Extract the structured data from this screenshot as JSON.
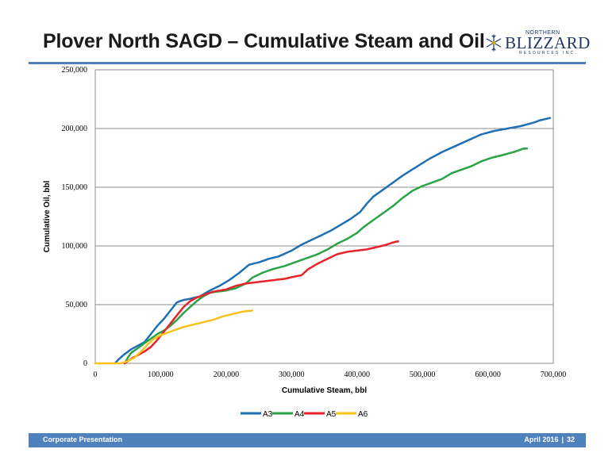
{
  "slide": {
    "title": "Plover North SAGD – Cumulative Steam and Oil",
    "logo": {
      "top": "NORTHERN",
      "name": "BLIZZARD",
      "sub": "RESOURCES INC."
    },
    "footer": {
      "left": "Corporate Presentation",
      "date": "April 2016",
      "separator": "|",
      "page": "32"
    },
    "colors": {
      "accent": "#4f81bd"
    }
  },
  "chart_data": {
    "type": "line",
    "xlabel": "Cumulative Steam, bbl",
    "ylabel": "Cumulative Oil, bbl",
    "xlim": [
      0,
      700000
    ],
    "ylim": [
      0,
      250000
    ],
    "xticks": [
      0,
      100000,
      200000,
      300000,
      400000,
      500000,
      600000,
      700000
    ],
    "xtick_labels": [
      "0",
      "100,000",
      "200,000",
      "300,000",
      "400,000",
      "500,000",
      "600,000",
      "700,000"
    ],
    "yticks": [
      0,
      50000,
      100000,
      150000,
      200000,
      250000
    ],
    "ytick_labels": [
      "0",
      "50,000",
      "100,000",
      "150,000",
      "200,000",
      "250,000"
    ],
    "grid": "horizontal",
    "legend": "bottom",
    "series": [
      {
        "name": "A3",
        "color": "#1f6fb4",
        "points": [
          [
            30000,
            0
          ],
          [
            35000,
            3000
          ],
          [
            45000,
            8000
          ],
          [
            55000,
            12000
          ],
          [
            65000,
            15000
          ],
          [
            75000,
            18000
          ],
          [
            85000,
            25000
          ],
          [
            95000,
            32000
          ],
          [
            105000,
            38000
          ],
          [
            115000,
            45000
          ],
          [
            125000,
            52000
          ],
          [
            135000,
            54000
          ],
          [
            145000,
            55000
          ],
          [
            160000,
            57000
          ],
          [
            175000,
            62000
          ],
          [
            190000,
            66000
          ],
          [
            205000,
            71000
          ],
          [
            220000,
            77000
          ],
          [
            235000,
            84000
          ],
          [
            250000,
            86000
          ],
          [
            265000,
            89000
          ],
          [
            280000,
            91000
          ],
          [
            300000,
            96000
          ],
          [
            315000,
            101000
          ],
          [
            330000,
            105000
          ],
          [
            345000,
            109000
          ],
          [
            360000,
            113000
          ],
          [
            375000,
            118000
          ],
          [
            390000,
            123000
          ],
          [
            405000,
            129000
          ],
          [
            415000,
            136000
          ],
          [
            425000,
            142000
          ],
          [
            440000,
            148000
          ],
          [
            455000,
            154000
          ],
          [
            470000,
            160000
          ],
          [
            490000,
            167000
          ],
          [
            510000,
            174000
          ],
          [
            530000,
            180000
          ],
          [
            550000,
            185000
          ],
          [
            570000,
            190000
          ],
          [
            590000,
            195000
          ],
          [
            610000,
            198000
          ],
          [
            630000,
            200000
          ],
          [
            650000,
            202000
          ],
          [
            670000,
            205000
          ],
          [
            680000,
            207000
          ],
          [
            695000,
            209000
          ]
        ]
      },
      {
        "name": "A4",
        "color": "#2aa347",
        "points": [
          [
            45000,
            0
          ],
          [
            50000,
            5000
          ],
          [
            55000,
            9000
          ],
          [
            65000,
            13000
          ],
          [
            75000,
            17000
          ],
          [
            85000,
            21000
          ],
          [
            95000,
            25000
          ],
          [
            105000,
            28000
          ],
          [
            115000,
            32000
          ],
          [
            125000,
            37000
          ],
          [
            135000,
            43000
          ],
          [
            145000,
            48000
          ],
          [
            155000,
            53000
          ],
          [
            165000,
            57000
          ],
          [
            175000,
            60000
          ],
          [
            185000,
            61000
          ],
          [
            200000,
            62000
          ],
          [
            215000,
            64000
          ],
          [
            230000,
            68000
          ],
          [
            240000,
            73000
          ],
          [
            255000,
            77000
          ],
          [
            270000,
            80000
          ],
          [
            290000,
            83000
          ],
          [
            305000,
            86000
          ],
          [
            320000,
            89000
          ],
          [
            340000,
            93000
          ],
          [
            355000,
            97000
          ],
          [
            370000,
            102000
          ],
          [
            385000,
            106000
          ],
          [
            400000,
            111000
          ],
          [
            410000,
            116000
          ],
          [
            425000,
            122000
          ],
          [
            440000,
            128000
          ],
          [
            455000,
            134000
          ],
          [
            470000,
            141000
          ],
          [
            485000,
            147000
          ],
          [
            500000,
            151000
          ],
          [
            515000,
            154000
          ],
          [
            530000,
            157000
          ],
          [
            545000,
            162000
          ],
          [
            560000,
            165000
          ],
          [
            575000,
            168000
          ],
          [
            590000,
            172000
          ],
          [
            605000,
            175000
          ],
          [
            620000,
            177000
          ],
          [
            640000,
            180000
          ],
          [
            655000,
            183000
          ],
          [
            660000,
            183000
          ]
        ]
      },
      {
        "name": "A5",
        "color": "#e8232a",
        "points": [
          [
            45000,
            0
          ],
          [
            55000,
            4000
          ],
          [
            65000,
            7000
          ],
          [
            75000,
            10000
          ],
          [
            85000,
            14000
          ],
          [
            95000,
            20000
          ],
          [
            105000,
            27000
          ],
          [
            115000,
            34000
          ],
          [
            125000,
            41000
          ],
          [
            135000,
            48000
          ],
          [
            145000,
            53000
          ],
          [
            155000,
            56000
          ],
          [
            165000,
            58000
          ],
          [
            180000,
            61000
          ],
          [
            200000,
            63000
          ],
          [
            215000,
            66000
          ],
          [
            230000,
            68000
          ],
          [
            245000,
            69000
          ],
          [
            260000,
            70000
          ],
          [
            275000,
            71000
          ],
          [
            290000,
            72000
          ],
          [
            305000,
            74000
          ],
          [
            315000,
            75000
          ],
          [
            325000,
            80000
          ],
          [
            340000,
            85000
          ],
          [
            355000,
            89000
          ],
          [
            370000,
            93000
          ],
          [
            385000,
            95000
          ],
          [
            400000,
            96000
          ],
          [
            415000,
            97000
          ],
          [
            430000,
            99000
          ],
          [
            445000,
            101000
          ],
          [
            455000,
            103000
          ],
          [
            463000,
            104000
          ]
        ]
      },
      {
        "name": "A6",
        "color": "#f7c21a",
        "points": [
          [
            0,
            0
          ],
          [
            40000,
            0
          ],
          [
            50000,
            2000
          ],
          [
            60000,
            5000
          ],
          [
            70000,
            10000
          ],
          [
            80000,
            16000
          ],
          [
            90000,
            21000
          ],
          [
            100000,
            24000
          ],
          [
            110000,
            26000
          ],
          [
            120000,
            28000
          ],
          [
            135000,
            31000
          ],
          [
            150000,
            33000
          ],
          [
            165000,
            35000
          ],
          [
            180000,
            37000
          ],
          [
            195000,
            40000
          ],
          [
            210000,
            42000
          ],
          [
            225000,
            44000
          ],
          [
            240000,
            45000
          ]
        ]
      }
    ]
  }
}
